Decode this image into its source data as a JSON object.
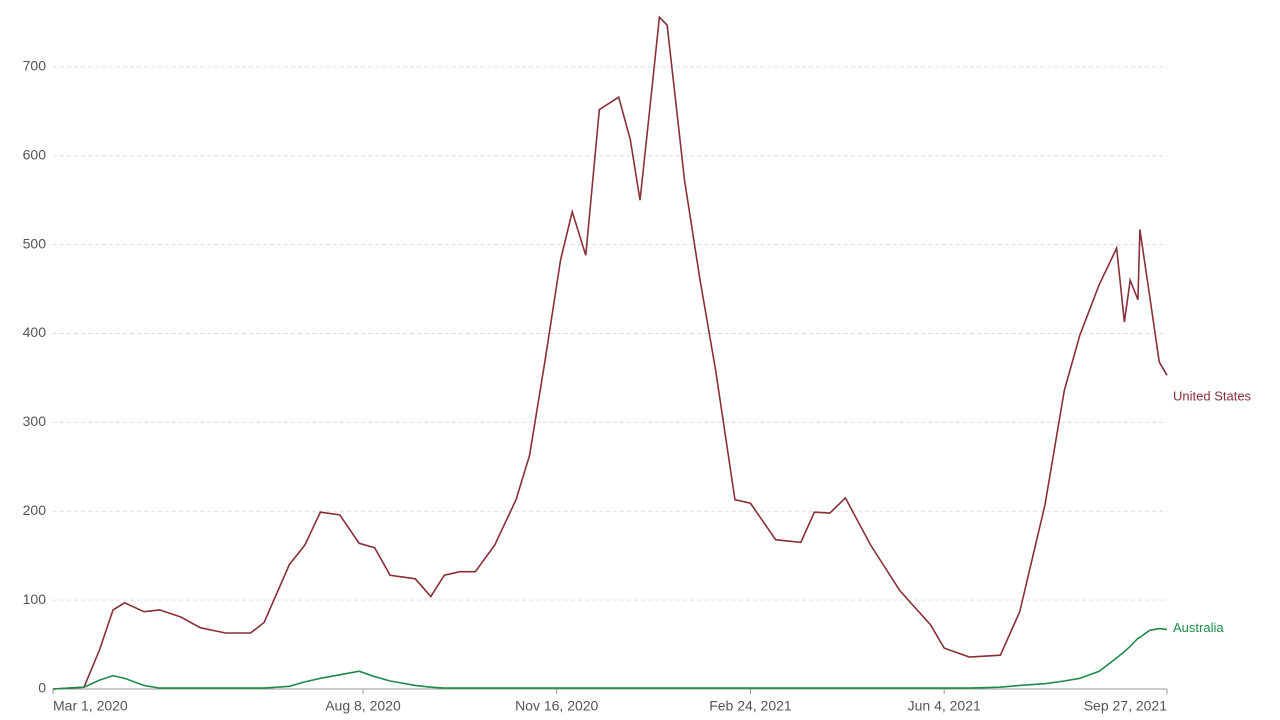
{
  "chart_data": {
    "type": "line",
    "x": [
      "2020-03-01",
      "2020-03-17",
      "2020-03-25",
      "2020-04-01",
      "2020-04-07",
      "2020-04-17",
      "2020-04-25",
      "2020-05-06",
      "2020-05-16",
      "2020-05-29",
      "2020-06-11",
      "2020-06-18",
      "2020-07-01",
      "2020-07-09",
      "2020-07-17",
      "2020-07-27",
      "2020-08-06",
      "2020-08-14",
      "2020-08-22",
      "2020-09-04",
      "2020-09-12",
      "2020-09-19",
      "2020-09-27",
      "2020-10-05",
      "2020-10-15",
      "2020-10-26",
      "2020-11-02",
      "2020-11-10",
      "2020-11-18",
      "2020-11-24",
      "2020-12-01",
      "2020-12-08",
      "2020-12-18",
      "2020-12-24",
      "2020-12-29",
      "2021-01-03",
      "2021-01-08",
      "2021-01-12",
      "2021-01-21",
      "2021-01-29",
      "2021-02-06",
      "2021-02-16",
      "2021-02-24",
      "2021-03-09",
      "2021-03-22",
      "2021-03-29",
      "2021-04-06",
      "2021-04-14",
      "2021-04-27",
      "2021-05-12",
      "2021-05-28",
      "2021-06-04",
      "2021-06-17",
      "2021-07-03",
      "2021-07-13",
      "2021-07-26",
      "2021-08-05",
      "2021-08-13",
      "2021-08-23",
      "2021-09-01",
      "2021-09-05",
      "2021-09-08",
      "2021-09-12",
      "2021-09-13",
      "2021-09-18",
      "2021-09-23",
      "2021-09-27"
    ],
    "series": [
      {
        "name": "United States",
        "color": "#883039",
        "values": [
          0,
          2,
          44,
          89,
          97,
          87,
          89,
          81,
          69,
          63,
          63,
          75,
          140,
          162,
          199,
          196,
          164,
          159,
          128,
          124,
          104,
          128,
          132,
          132,
          162,
          213,
          263,
          370,
          483,
          537,
          488,
          652,
          666,
          618,
          550,
          652,
          756,
          747,
          572,
          460,
          359,
          213,
          209,
          168,
          165,
          199,
          198,
          215,
          162,
          111,
          72,
          46,
          36,
          38,
          87,
          207,
          336,
          398,
          455,
          496,
          413,
          460,
          438,
          517,
          443,
          368,
          353
        ]
      },
      {
        "name": "Australia",
        "color": "#1f8a4c",
        "values": [
          0,
          2,
          10,
          15,
          12,
          4,
          1,
          1,
          1,
          1,
          1,
          1,
          3,
          8,
          12,
          16,
          20,
          14,
          9,
          4,
          2,
          1,
          1,
          1,
          1,
          1,
          1,
          1,
          1,
          1,
          1,
          1,
          1,
          1,
          1,
          1,
          1,
          1,
          1,
          1,
          1,
          1,
          1,
          1,
          1,
          1,
          1,
          1,
          1,
          1,
          1,
          1,
          1,
          2,
          4,
          6,
          9,
          12,
          20,
          35,
          42,
          48,
          57,
          58,
          66,
          68,
          67
        ]
      }
    ],
    "xlim": [
      "2020-03-01",
      "2021-09-27"
    ],
    "xticks": [
      {
        "value": "2020-03-01",
        "label": "Mar 1, 2020"
      },
      {
        "value": "2020-08-08",
        "label": "Aug 8, 2020"
      },
      {
        "value": "2020-11-16",
        "label": "Nov 16, 2020"
      },
      {
        "value": "2021-02-24",
        "label": "Feb 24, 2021"
      },
      {
        "value": "2021-06-04",
        "label": "Jun 4, 2021"
      },
      {
        "value": "2021-09-27",
        "label": "Sep 27, 2021"
      }
    ],
    "ylim": [
      0,
      760
    ],
    "yticks": [
      0,
      100,
      200,
      300,
      400,
      500,
      600,
      700
    ],
    "grid": true
  }
}
